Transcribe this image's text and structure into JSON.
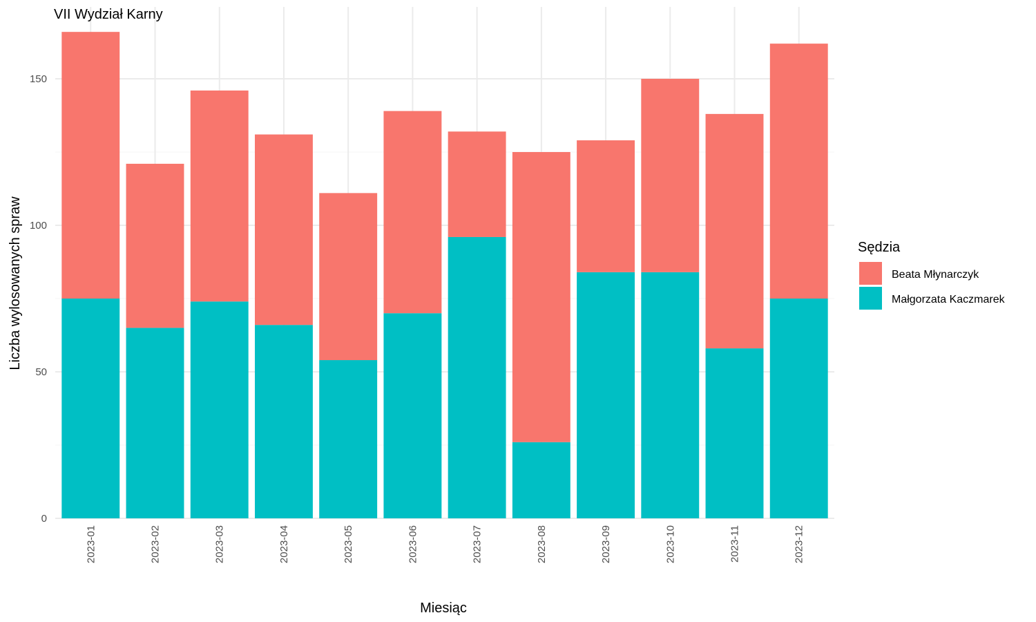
{
  "chart_data": {
    "type": "bar",
    "stacked": true,
    "title": "VII Wydział Karny",
    "xlabel": "Miesiąc",
    "ylabel": "Liczba wylosowanych spraw",
    "categories": [
      "2023-01",
      "2023-02",
      "2023-03",
      "2023-04",
      "2023-05",
      "2023-06",
      "2023-07",
      "2023-08",
      "2023-09",
      "2023-10",
      "2023-11",
      "2023-12"
    ],
    "series": [
      {
        "name": "Małgorzata Kaczmarek",
        "color": "#00BFC4",
        "values": [
          75,
          65,
          74,
          66,
          54,
          70,
          96,
          26,
          84,
          84,
          58,
          75
        ]
      },
      {
        "name": "Beata Młynarczyk",
        "color": "#F8766D",
        "values": [
          91,
          56,
          72,
          65,
          57,
          69,
          36,
          99,
          45,
          66,
          80,
          87
        ]
      }
    ],
    "ylim": [
      0,
      170
    ],
    "yticks": [
      0,
      50,
      100,
      150
    ],
    "grid": true,
    "legend": {
      "title": "Sędzia",
      "placement": "right",
      "order": [
        "Beata Młynarczyk",
        "Małgorzata Kaczmarek"
      ]
    }
  }
}
